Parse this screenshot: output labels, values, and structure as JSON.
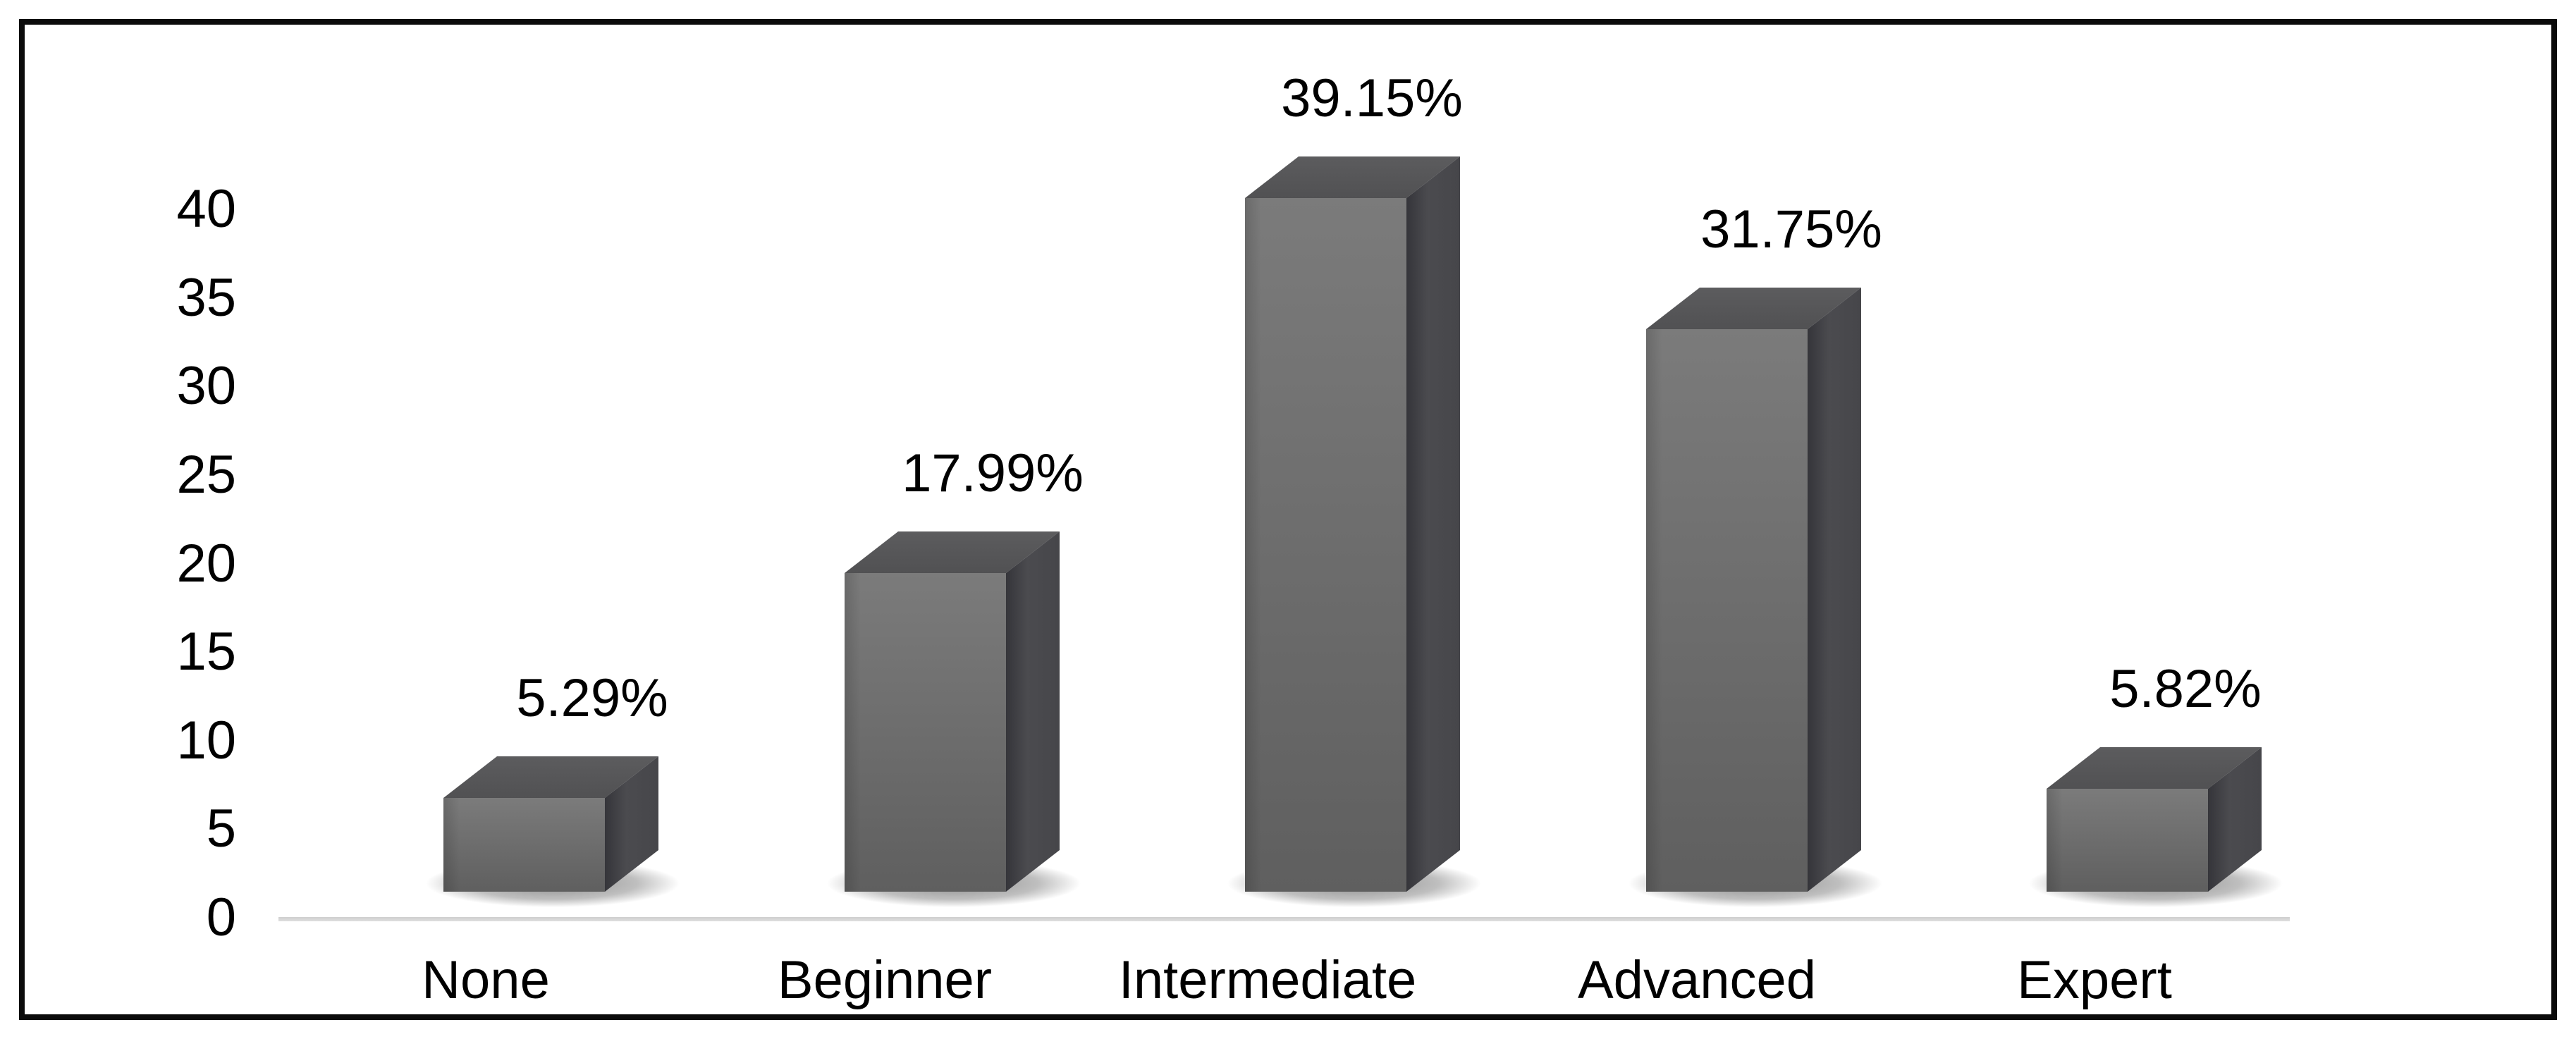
{
  "chart_data": {
    "type": "bar",
    "title": "",
    "xlabel": "",
    "ylabel": "",
    "categories": [
      "None",
      "Beginner",
      "Intermediate",
      "Advanced",
      "Expert"
    ],
    "values": [
      5.29,
      17.99,
      39.15,
      31.75,
      5.82
    ],
    "data_labels": [
      "5.29%",
      "17.99%",
      "39.15%",
      "31.75%",
      "5.82%"
    ],
    "yticks": [
      40,
      35,
      30,
      25,
      20,
      15,
      10,
      5,
      0
    ],
    "ylim": [
      0,
      40
    ],
    "grid": "off",
    "legend": "none",
    "bar_style": "3d-box-with-shadow",
    "colors": {
      "front_top": "#7b7b7b",
      "front_bottom": "#5f5f5f",
      "top_face_light": "#5c5c5e",
      "top_face_dark": "#515153",
      "side_face_dark": "#35353a",
      "side_face_mid": "#4b4b4f",
      "side_face_far": "#46464a",
      "shadow": "rgba(0,0,0,0.45)",
      "axis_line": "#d5d5d5",
      "text": "#000000",
      "border": "#0b0b0b",
      "background": "#ffffff"
    }
  }
}
